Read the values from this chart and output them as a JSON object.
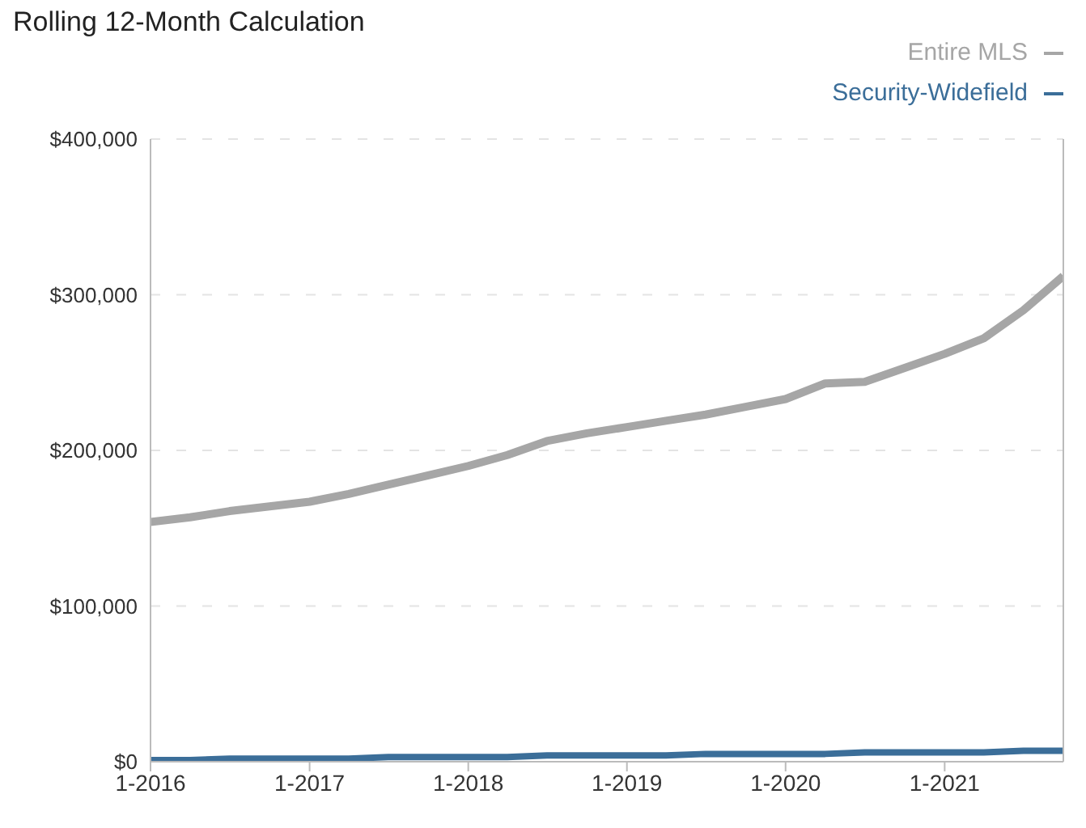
{
  "chart_data": {
    "type": "line",
    "title": "Rolling 12-Month Calculation",
    "x": [
      "2016-01",
      "2016-04",
      "2016-07",
      "2016-10",
      "2017-01",
      "2017-04",
      "2017-07",
      "2017-10",
      "2018-01",
      "2018-04",
      "2018-07",
      "2018-10",
      "2019-01",
      "2019-04",
      "2019-07",
      "2019-10",
      "2020-01",
      "2020-04",
      "2020-07",
      "2020-10",
      "2021-01",
      "2021-04",
      "2021-07",
      "2021-10"
    ],
    "series": [
      {
        "name": "Entire MLS",
        "color": "#a6a6a6",
        "values": [
          154000,
          157000,
          161000,
          164000,
          167000,
          172000,
          178000,
          184000,
          190000,
          197000,
          206000,
          211000,
          215000,
          219000,
          223000,
          228000,
          233000,
          243000,
          244000,
          253000,
          262000,
          272000,
          290000,
          312000
        ]
      },
      {
        "name": "Security-Widefield",
        "color": "#3b6e99",
        "values": [
          1000,
          1000,
          2000,
          2000,
          2000,
          2000,
          3000,
          3000,
          3000,
          3000,
          4000,
          4000,
          4000,
          4000,
          5000,
          5000,
          5000,
          5000,
          6000,
          6000,
          6000,
          6000,
          7000,
          7000
        ]
      }
    ],
    "xlim": [
      "2016-01",
      "2021-10"
    ],
    "xticks": [
      {
        "value": "2016-01",
        "label": "1-2016"
      },
      {
        "value": "2017-01",
        "label": "1-2017"
      },
      {
        "value": "2018-01",
        "label": "1-2018"
      },
      {
        "value": "2019-01",
        "label": "1-2019"
      },
      {
        "value": "2020-01",
        "label": "1-2020"
      },
      {
        "value": "2021-01",
        "label": "1-2021"
      }
    ],
    "ylim": [
      0,
      400000
    ],
    "yticks": [
      {
        "value": 0,
        "label": "$0"
      },
      {
        "value": 100000,
        "label": "$100,000"
      },
      {
        "value": 200000,
        "label": "$200,000"
      },
      {
        "value": 300000,
        "label": "$300,000"
      },
      {
        "value": 400000,
        "label": "$400,000"
      }
    ],
    "grid": "y",
    "legend": "top right",
    "marker": "none",
    "line_style": "solid"
  }
}
